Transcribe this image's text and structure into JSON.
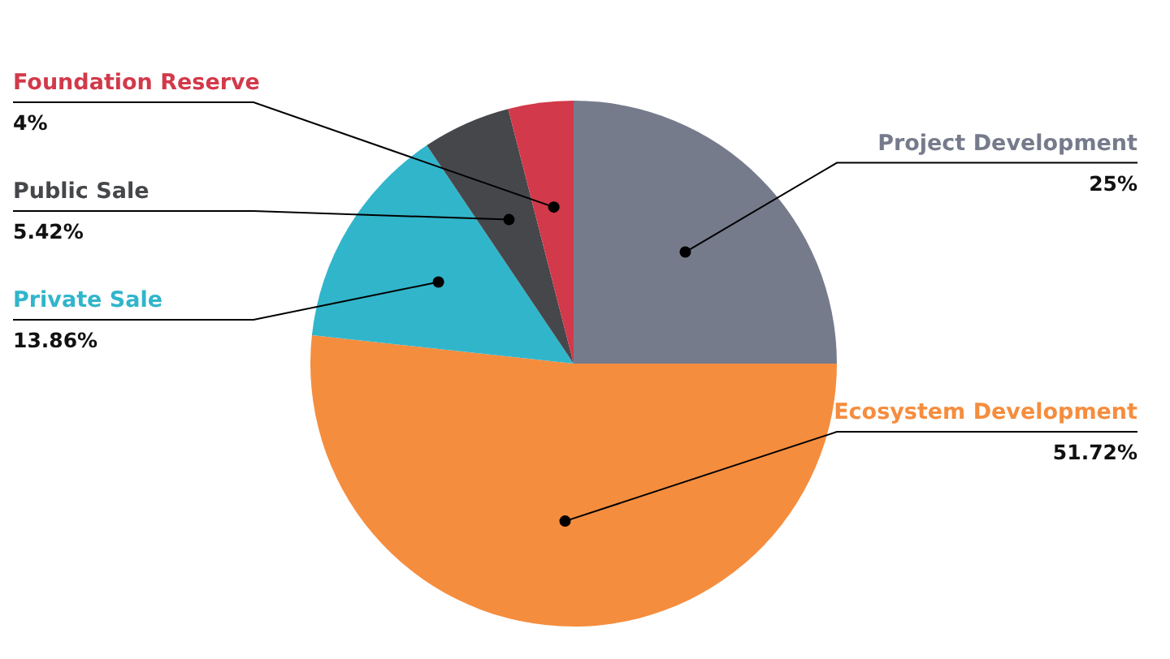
{
  "chart_data": {
    "type": "pie",
    "categories": [
      "Project Development",
      "Ecosystem Development",
      "Private Sale",
      "Public Sale",
      "Foundation Reserve"
    ],
    "values": [
      25,
      51.72,
      13.86,
      5.42,
      4
    ],
    "colors": [
      "#767b8c",
      "#f58d3e",
      "#31b5cb",
      "#45474b",
      "#d2394a"
    ],
    "value_labels": [
      "25%",
      "51.72%",
      "13.86%",
      "5.42%",
      "4%"
    ]
  }
}
